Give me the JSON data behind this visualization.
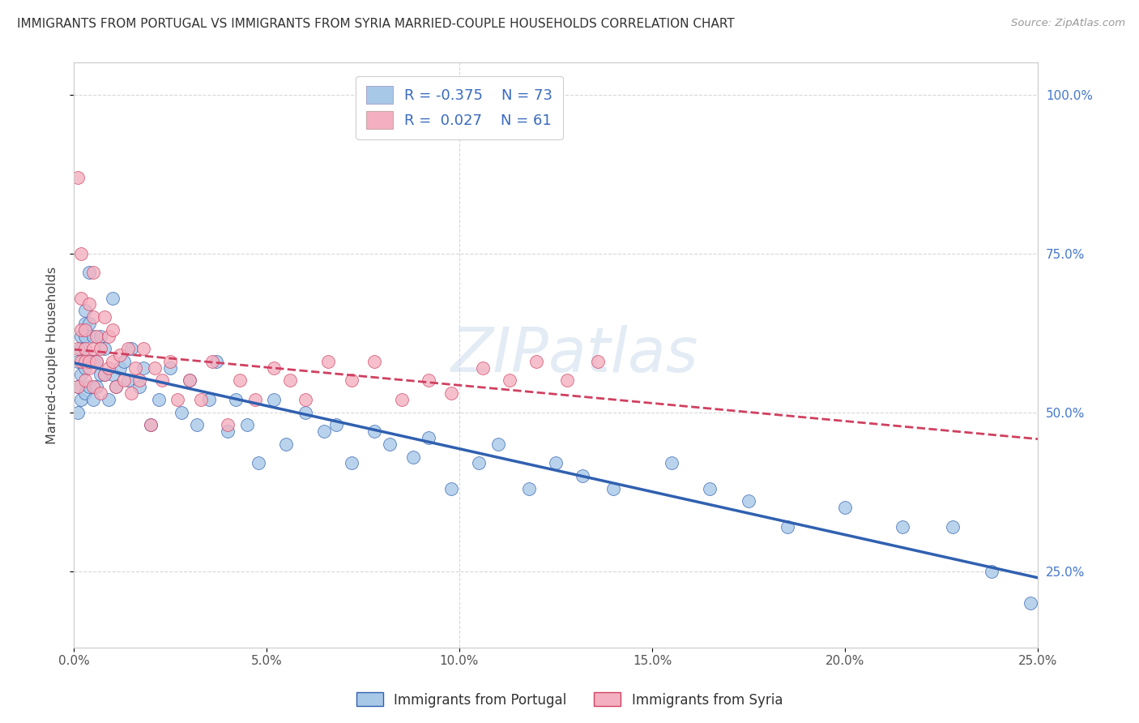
{
  "title": "IMMIGRANTS FROM PORTUGAL VS IMMIGRANTS FROM SYRIA MARRIED-COUPLE HOUSEHOLDS CORRELATION CHART",
  "source": "Source: ZipAtlas.com",
  "ylabel": "Married-couple Households",
  "legend_label_1": "Immigrants from Portugal",
  "legend_label_2": "Immigrants from Syria",
  "R1": -0.375,
  "N1": 73,
  "R2": 0.027,
  "N2": 61,
  "color_blue": "#a8c8e8",
  "color_pink": "#f4b0c0",
  "trend_blue": "#3060b0",
  "trend_pink": "#d04060",
  "xlim": [
    0.0,
    0.25
  ],
  "ylim": [
    0.13,
    1.05
  ],
  "x_ticks": [
    0.0,
    0.05,
    0.1,
    0.15,
    0.2,
    0.25
  ],
  "y_ticks": [
    0.25,
    0.5,
    0.75,
    1.0
  ],
  "background_color": "#ffffff",
  "grid_color": "#d8d8d8",
  "watermark": "ZIPatlas",
  "portugal_x": [
    0.001,
    0.001,
    0.001,
    0.002,
    0.002,
    0.002,
    0.002,
    0.003,
    0.003,
    0.003,
    0.003,
    0.003,
    0.004,
    0.004,
    0.004,
    0.004,
    0.005,
    0.005,
    0.005,
    0.006,
    0.006,
    0.007,
    0.007,
    0.008,
    0.008,
    0.009,
    0.01,
    0.01,
    0.011,
    0.012,
    0.013,
    0.014,
    0.015,
    0.017,
    0.018,
    0.02,
    0.022,
    0.025,
    0.028,
    0.03,
    0.032,
    0.035,
    0.037,
    0.04,
    0.042,
    0.045,
    0.048,
    0.052,
    0.055,
    0.06,
    0.065,
    0.068,
    0.072,
    0.078,
    0.082,
    0.088,
    0.092,
    0.098,
    0.105,
    0.11,
    0.118,
    0.125,
    0.132,
    0.14,
    0.155,
    0.165,
    0.175,
    0.185,
    0.2,
    0.215,
    0.228,
    0.238,
    0.248
  ],
  "portugal_y": [
    0.54,
    0.58,
    0.5,
    0.56,
    0.6,
    0.62,
    0.52,
    0.57,
    0.53,
    0.62,
    0.64,
    0.66,
    0.54,
    0.58,
    0.72,
    0.64,
    0.52,
    0.58,
    0.62,
    0.54,
    0.58,
    0.56,
    0.62,
    0.56,
    0.6,
    0.52,
    0.56,
    0.68,
    0.54,
    0.57,
    0.58,
    0.55,
    0.6,
    0.54,
    0.57,
    0.48,
    0.52,
    0.57,
    0.5,
    0.55,
    0.48,
    0.52,
    0.58,
    0.47,
    0.52,
    0.48,
    0.42,
    0.52,
    0.45,
    0.5,
    0.47,
    0.48,
    0.42,
    0.47,
    0.45,
    0.43,
    0.46,
    0.38,
    0.42,
    0.45,
    0.38,
    0.42,
    0.4,
    0.38,
    0.42,
    0.38,
    0.36,
    0.32,
    0.35,
    0.32,
    0.32,
    0.25,
    0.2
  ],
  "syria_x": [
    0.001,
    0.001,
    0.001,
    0.002,
    0.002,
    0.002,
    0.002,
    0.003,
    0.003,
    0.003,
    0.003,
    0.004,
    0.004,
    0.004,
    0.005,
    0.005,
    0.005,
    0.005,
    0.006,
    0.006,
    0.007,
    0.007,
    0.008,
    0.008,
    0.009,
    0.009,
    0.01,
    0.01,
    0.011,
    0.012,
    0.013,
    0.014,
    0.015,
    0.016,
    0.017,
    0.018,
    0.02,
    0.021,
    0.023,
    0.025,
    0.027,
    0.03,
    0.033,
    0.036,
    0.04,
    0.043,
    0.047,
    0.052,
    0.056,
    0.06,
    0.066,
    0.072,
    0.078,
    0.085,
    0.092,
    0.098,
    0.106,
    0.113,
    0.12,
    0.128,
    0.136
  ],
  "syria_y": [
    0.54,
    0.6,
    0.87,
    0.58,
    0.68,
    0.63,
    0.75,
    0.55,
    0.58,
    0.63,
    0.6,
    0.57,
    0.67,
    0.58,
    0.6,
    0.65,
    0.54,
    0.72,
    0.58,
    0.62,
    0.53,
    0.6,
    0.56,
    0.65,
    0.57,
    0.62,
    0.58,
    0.63,
    0.54,
    0.59,
    0.55,
    0.6,
    0.53,
    0.57,
    0.55,
    0.6,
    0.48,
    0.57,
    0.55,
    0.58,
    0.52,
    0.55,
    0.52,
    0.58,
    0.48,
    0.55,
    0.52,
    0.57,
    0.55,
    0.52,
    0.58,
    0.55,
    0.58,
    0.52,
    0.55,
    0.53,
    0.57,
    0.55,
    0.58,
    0.55,
    0.58
  ]
}
